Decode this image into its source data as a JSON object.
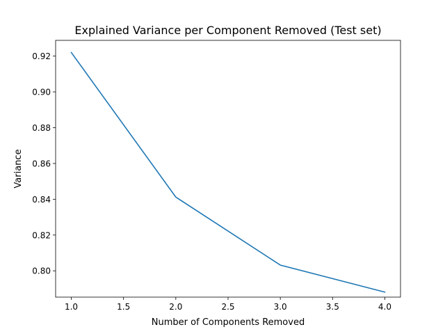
{
  "chart_data": {
    "type": "line",
    "title": "Explained Variance per Component Removed (Test set)",
    "xlabel": "Number of Components Removed",
    "ylabel": "Variance",
    "xlim": [
      0.85,
      4.15
    ],
    "ylim": [
      0.7853,
      0.9288
    ],
    "x_ticks": [
      1.0,
      1.5,
      2.0,
      2.5,
      3.0,
      3.5,
      4.0
    ],
    "x_tick_labels": [
      "1.0",
      "1.5",
      "2.0",
      "2.5",
      "3.0",
      "3.5",
      "4.0"
    ],
    "y_ticks": [
      0.8,
      0.82,
      0.84,
      0.86,
      0.88,
      0.9,
      0.92
    ],
    "y_tick_labels": [
      "0.80",
      "0.82",
      "0.84",
      "0.86",
      "0.88",
      "0.90",
      "0.92"
    ],
    "grid": false,
    "legend": "none",
    "series": [
      {
        "color": "#1f77b4",
        "x": [
          1,
          2,
          3,
          4
        ],
        "y": [
          0.922,
          0.8412,
          0.8032,
          0.7881
        ]
      }
    ]
  }
}
